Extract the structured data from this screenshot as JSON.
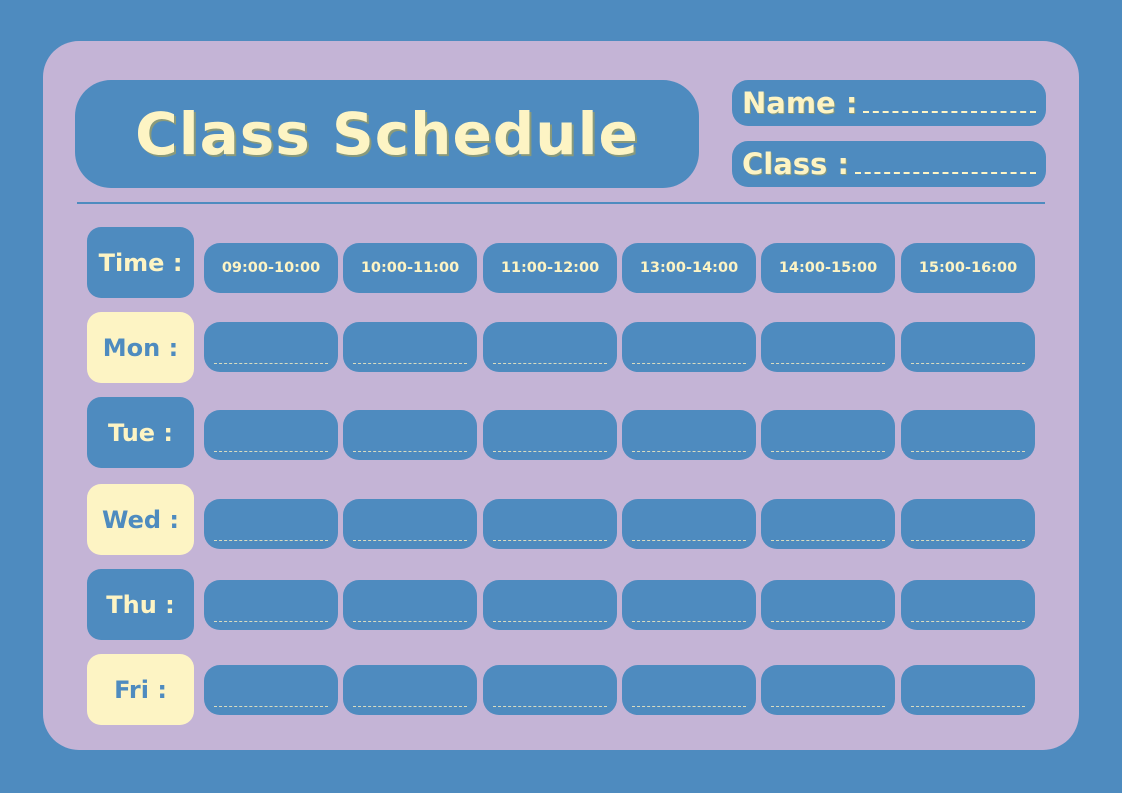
{
  "title": "Class Schedule",
  "fields": {
    "name_label": "Name :",
    "class_label": "Class :"
  },
  "time_label": "Time :",
  "time_slots": [
    "09:00-10:00",
    "10:00-11:00",
    "11:00-12:00",
    "13:00-14:00",
    "14:00-15:00",
    "15:00-16:00"
  ],
  "days": [
    {
      "label": "Mon :",
      "style": "cream"
    },
    {
      "label": "Tue :",
      "style": "blue"
    },
    {
      "label": "Wed :",
      "style": "cream"
    },
    {
      "label": "Thu :",
      "style": "blue"
    },
    {
      "label": "Fri :",
      "style": "cream"
    }
  ],
  "colors": {
    "background": "#4e8bbf",
    "panel": "#c4b4d6",
    "cream": "#fdf4c4",
    "blue": "#4e8bbf"
  }
}
